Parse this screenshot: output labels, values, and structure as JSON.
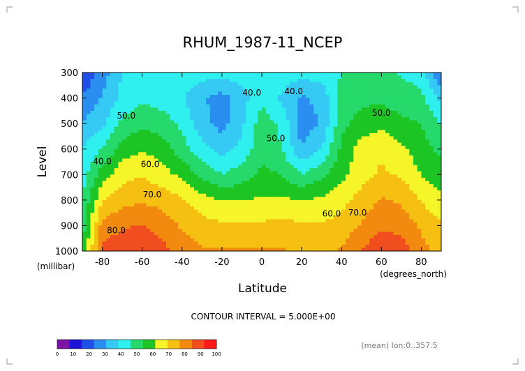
{
  "chart_data": {
    "type": "heatmap",
    "title": "RHUM_1987-11_NCEP",
    "xlabel": "Latitude",
    "ylabel": "Level",
    "x_units": "(degrees_north)",
    "y_units": "(millibar)",
    "xlim": [
      -90,
      90
    ],
    "ylim": [
      1000,
      300
    ],
    "x_ticks": [
      "-80",
      "-60",
      "-40",
      "-20",
      "0",
      "20",
      "40",
      "60",
      "80"
    ],
    "x_tick_values": [
      -80,
      -60,
      -40,
      -20,
      0,
      20,
      40,
      60,
      80
    ],
    "y_ticks": [
      "300",
      "400",
      "500",
      "600",
      "700",
      "800",
      "900",
      "1000"
    ],
    "y_tick_values": [
      300,
      400,
      500,
      600,
      700,
      800,
      900,
      1000
    ],
    "contour_interval_text": "CONTOUR INTERVAL = 5.000E+00",
    "footer_note": "(mean) lon:0..357.5",
    "colorbar": {
      "levels": [
        "0",
        "10",
        "20",
        "30",
        "40",
        "50",
        "60",
        "70",
        "80",
        "90",
        "100"
      ],
      "colors": [
        "#7a13a6",
        "#1c12d8",
        "#1e4fe6",
        "#2a8ef0",
        "#35c9f4",
        "#2ff0ee",
        "#26d96b",
        "#1cc523",
        "#f5f52a",
        "#f6c012",
        "#f38a10",
        "#f04e1f",
        "#ff1a1a"
      ]
    },
    "contour_labels": [
      {
        "text": "40.0",
        "lon": -5,
        "lev": 390
      },
      {
        "text": "40.0",
        "lon": 16,
        "lev": 385
      },
      {
        "text": "50.0",
        "lon": 60,
        "lev": 470
      },
      {
        "text": "50.0",
        "lon": -68,
        "lev": 480
      },
      {
        "text": "50.0",
        "lon": 7,
        "lev": 570
      },
      {
        "text": "40.0",
        "lon": -80,
        "lev": 660
      },
      {
        "text": "60.0",
        "lon": -56,
        "lev": 670
      },
      {
        "text": "70.0",
        "lon": -55,
        "lev": 790
      },
      {
        "text": "60.0",
        "lon": 35,
        "lev": 865
      },
      {
        "text": "70.0",
        "lon": 48,
        "lev": 860
      },
      {
        "text": "80.0",
        "lon": -73,
        "lev": 930
      }
    ],
    "field": {
      "lat": [
        -90,
        -80,
        -70,
        -60,
        -50,
        -40,
        -30,
        -20,
        -10,
        0,
        10,
        20,
        30,
        40,
        50,
        60,
        70,
        80,
        90
      ],
      "lev": [
        300,
        400,
        500,
        600,
        700,
        800,
        900,
        1000
      ],
      "values": [
        [
          12,
          25,
          38,
          42,
          44,
          44,
          42,
          40,
          42,
          45,
          43,
          40,
          42,
          46,
          48,
          48,
          45,
          42,
          18
        ],
        [
          22,
          30,
          40,
          44,
          42,
          38,
          30,
          26,
          34,
          44,
          36,
          28,
          32,
          48,
          52,
          52,
          50,
          48,
          35
        ],
        [
          30,
          35,
          48,
          52,
          50,
          44,
          32,
          26,
          36,
          50,
          44,
          24,
          30,
          52,
          58,
          60,
          56,
          54,
          45
        ],
        [
          38,
          46,
          58,
          62,
          58,
          50,
          40,
          34,
          40,
          52,
          46,
          30,
          38,
          56,
          66,
          70,
          64,
          58,
          52
        ],
        [
          42,
          58,
          68,
          70,
          66,
          60,
          52,
          46,
          50,
          56,
          54,
          46,
          52,
          60,
          68,
          72,
          70,
          62,
          58
        ],
        [
          46,
          70,
          76,
          78,
          76,
          72,
          66,
          62,
          62,
          64,
          64,
          62,
          64,
          68,
          74,
          80,
          78,
          70,
          64
        ],
        [
          50,
          82,
          86,
          88,
          84,
          78,
          74,
          72,
          72,
          72,
          74,
          72,
          72,
          74,
          80,
          86,
          84,
          78,
          72
        ],
        [
          54,
          90,
          94,
          96,
          90,
          84,
          80,
          80,
          80,
          80,
          80,
          78,
          78,
          80,
          88,
          94,
          92,
          82,
          76
        ]
      ]
    }
  }
}
